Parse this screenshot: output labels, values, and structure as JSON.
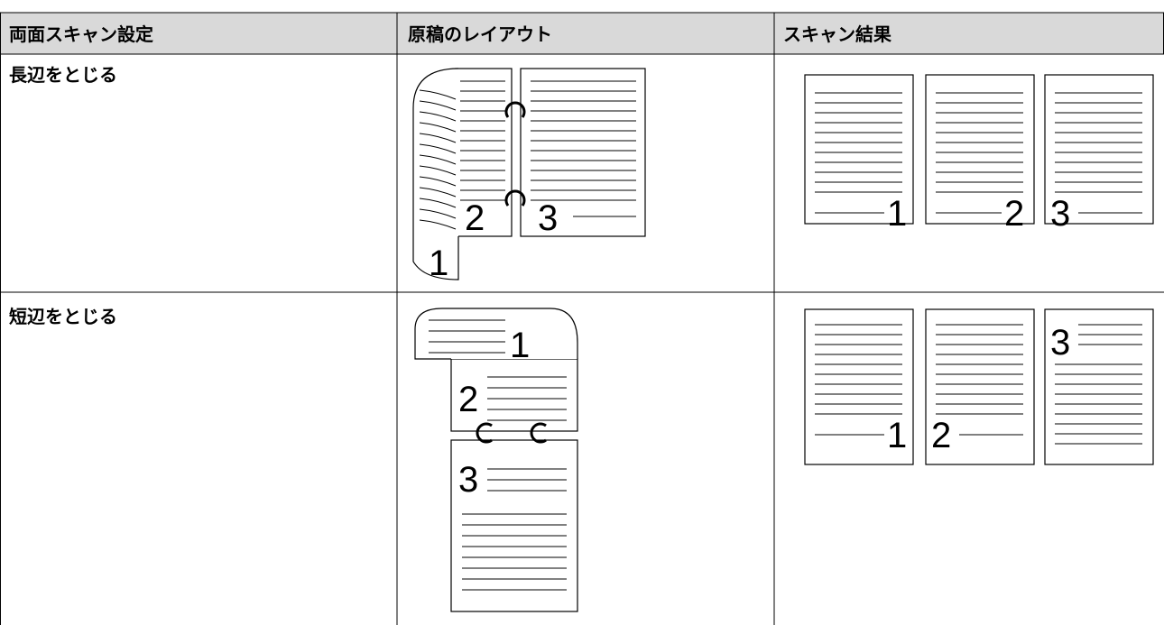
{
  "table": {
    "headers": [
      "両面スキャン設定",
      "原稿のレイアウト",
      "スキャン結果"
    ],
    "rows": [
      {
        "setting": "長辺をとじる",
        "layout_pages": [
          "1",
          "2",
          "3"
        ],
        "result_pages": [
          "1",
          "2",
          "3"
        ]
      },
      {
        "setting": "短辺をとじる",
        "layout_pages": [
          "1",
          "2",
          "3"
        ],
        "result_pages": [
          "1",
          "2",
          "3"
        ]
      }
    ]
  }
}
